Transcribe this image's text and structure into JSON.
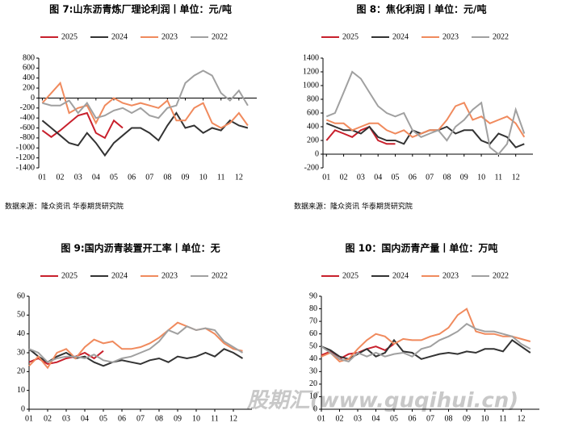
{
  "chart_data": [
    {
      "type": "line",
      "title": "图 7:山东沥青炼厂理论利润丨单位：元/吨",
      "source": "数据来源：隆众资讯 华泰期货研究院",
      "x": [
        1,
        1.5,
        2,
        2.5,
        3,
        3.5,
        4,
        4.5,
        5,
        5.5,
        6,
        6.5,
        7,
        7.5,
        8,
        8.5,
        9,
        9.5,
        10,
        10.5,
        11,
        11.5,
        12,
        12.5
      ],
      "xlim": [
        0.8,
        13
      ],
      "xticks": [
        {
          "value": 1,
          "label": "01"
        },
        {
          "value": 2,
          "label": "02"
        },
        {
          "value": 3,
          "label": "03"
        },
        {
          "value": 4,
          "label": "04"
        },
        {
          "value": 5,
          "label": "05"
        },
        {
          "value": 6,
          "label": "06"
        },
        {
          "value": 7,
          "label": "07"
        },
        {
          "value": 8,
          "label": "08"
        },
        {
          "value": 9,
          "label": "09"
        },
        {
          "value": 10,
          "label": "10"
        },
        {
          "value": 11,
          "label": "11"
        },
        {
          "value": 12,
          "label": "12"
        }
      ],
      "ylim": [
        -1400,
        800
      ],
      "yticks": [
        -1400,
        -1200,
        -1000,
        -800,
        -600,
        -400,
        -200,
        0,
        200,
        400,
        600,
        800
      ],
      "series": [
        {
          "name": "2025",
          "color": "#c8202c",
          "values": [
            -650,
            -780,
            -650,
            -500,
            -350,
            -300,
            -700,
            -800,
            -450,
            -600,
            null,
            null,
            null,
            null,
            null,
            null,
            null,
            null,
            null,
            null,
            null,
            null,
            null,
            null
          ]
        },
        {
          "name": "2024",
          "color": "#333333",
          "values": [
            -450,
            -600,
            -750,
            -900,
            -950,
            -700,
            -900,
            -1150,
            -900,
            -750,
            -600,
            -600,
            -700,
            -850,
            -550,
            -300,
            -600,
            -550,
            -700,
            -600,
            -650,
            -450,
            -550,
            -600
          ]
        },
        {
          "name": "2023",
          "color": "#f08a5d",
          "values": [
            -100,
            100,
            300,
            -300,
            -200,
            -150,
            -500,
            -150,
            0,
            -100,
            -150,
            -100,
            -150,
            -200,
            -50,
            -450,
            -450,
            -200,
            -100,
            -500,
            -600,
            -500,
            -300,
            -550
          ]
        },
        {
          "name": "2022",
          "color": "#a0a0a0",
          "values": [
            -100,
            -150,
            -150,
            -50,
            -300,
            -100,
            -400,
            -350,
            -250,
            -200,
            -300,
            -200,
            -350,
            -400,
            -200,
            -150,
            300,
            450,
            550,
            450,
            100,
            -50,
            150,
            -150
          ]
        }
      ]
    },
    {
      "type": "line",
      "title": "图 8：焦化利润丨单位：元/吨",
      "source": "数据来源：隆众资讯 华泰期货研究院",
      "x": [
        1,
        1.5,
        2,
        2.5,
        3,
        3.5,
        4,
        4.5,
        5,
        5.5,
        6,
        6.5,
        7,
        7.5,
        8,
        8.5,
        9,
        9.5,
        10,
        10.5,
        11,
        11.5,
        12,
        12.5
      ],
      "xlim": [
        0.8,
        13
      ],
      "xticks": [
        {
          "value": 1,
          "label": "01"
        },
        {
          "value": 2,
          "label": "02"
        },
        {
          "value": 3,
          "label": "03"
        },
        {
          "value": 4,
          "label": "04"
        },
        {
          "value": 5,
          "label": "05"
        },
        {
          "value": 6,
          "label": "06"
        },
        {
          "value": 7,
          "label": "07"
        },
        {
          "value": 8,
          "label": "08"
        },
        {
          "value": 9,
          "label": "09"
        },
        {
          "value": 10,
          "label": "10"
        },
        {
          "value": 11,
          "label": "11"
        },
        {
          "value": 12,
          "label": "12"
        }
      ],
      "ylim": [
        -200,
        1400
      ],
      "yticks": [
        -200,
        0,
        200,
        400,
        600,
        800,
        1000,
        1200,
        1400
      ],
      "series": [
        {
          "name": "2025",
          "color": "#c8202c",
          "values": [
            200,
            350,
            300,
            250,
            350,
            400,
            200,
            150,
            150,
            null,
            null,
            null,
            null,
            null,
            null,
            null,
            null,
            null,
            null,
            null,
            null,
            null,
            null,
            null
          ]
        },
        {
          "name": "2024",
          "color": "#333333",
          "values": [
            450,
            400,
            350,
            350,
            300,
            400,
            250,
            200,
            200,
            150,
            350,
            300,
            350,
            350,
            400,
            300,
            350,
            350,
            200,
            150,
            300,
            250,
            100,
            150
          ]
        },
        {
          "name": "2023",
          "color": "#f08a5d",
          "values": [
            500,
            450,
            450,
            350,
            400,
            450,
            450,
            350,
            300,
            350,
            250,
            300,
            350,
            350,
            500,
            700,
            750,
            500,
            550,
            450,
            500,
            550,
            450,
            250
          ]
        },
        {
          "name": "2022",
          "color": "#a0a0a0",
          "values": [
            550,
            600,
            900,
            1200,
            1100,
            900,
            700,
            600,
            550,
            600,
            350,
            250,
            300,
            350,
            200,
            400,
            500,
            650,
            750,
            100,
            0,
            150,
            650,
            300
          ]
        }
      ]
    },
    {
      "type": "line",
      "title": "图 9:国内沥青装置开工率丨单位：无",
      "x": [
        1,
        1.5,
        2,
        2.5,
        3,
        3.5,
        4,
        4.5,
        5,
        5.5,
        6,
        6.5,
        7,
        7.5,
        8,
        8.5,
        9,
        9.5,
        10,
        10.5,
        11,
        11.5,
        12,
        12.5
      ],
      "xlim": [
        1,
        13
      ],
      "xticks": [
        {
          "value": 1,
          "label": "01"
        },
        {
          "value": 2,
          "label": "02"
        },
        {
          "value": 3,
          "label": "03"
        },
        {
          "value": 4,
          "label": "04"
        },
        {
          "value": 5,
          "label": "05"
        },
        {
          "value": 6,
          "label": "06"
        },
        {
          "value": 7,
          "label": "07"
        },
        {
          "value": 8,
          "label": "08"
        },
        {
          "value": 9,
          "label": "09"
        },
        {
          "value": 10,
          "label": "10"
        },
        {
          "value": 11,
          "label": "11"
        },
        {
          "value": 12,
          "label": "12"
        }
      ],
      "ylim": [
        0,
        60
      ],
      "yticks": [
        0,
        10,
        20,
        30,
        40,
        50,
        60
      ],
      "series": [
        {
          "name": "2025",
          "color": "#c8202c",
          "values": [
            25,
            27,
            24,
            25,
            27,
            28,
            30,
            27,
            31,
            null,
            null,
            null,
            null,
            null,
            null,
            null,
            null,
            null,
            null,
            null,
            null,
            null,
            null,
            null
          ]
        },
        {
          "name": "2024",
          "color": "#333333",
          "values": [
            32,
            28,
            25,
            28,
            30,
            27,
            28,
            25,
            23,
            25,
            26,
            25,
            24,
            26,
            27,
            25,
            28,
            27,
            28,
            30,
            28,
            32,
            30,
            27
          ]
        },
        {
          "name": "2023",
          "color": "#f08a5d",
          "values": [
            23,
            28,
            22,
            30,
            32,
            27,
            33,
            37,
            35,
            36,
            32,
            32,
            33,
            35,
            38,
            42,
            46,
            44,
            42,
            43,
            40,
            35,
            32,
            31
          ]
        },
        {
          "name": "2022",
          "color": "#a0a0a0",
          "values": [
            32,
            30,
            25,
            27,
            28,
            28,
            27,
            29,
            26,
            25,
            27,
            28,
            30,
            32,
            36,
            42,
            40,
            44,
            42,
            43,
            42,
            36,
            33,
            30
          ]
        }
      ]
    },
    {
      "type": "line",
      "title": "图 10：国内沥青产量丨单位：万吨",
      "x": [
        1,
        1.5,
        2,
        2.5,
        3,
        3.5,
        4,
        4.5,
        5,
        5.5,
        6,
        6.5,
        7,
        7.5,
        8,
        8.5,
        9,
        9.5,
        10,
        10.5,
        11,
        11.5,
        12,
        12.5
      ],
      "xlim": [
        1,
        13
      ],
      "xticks": [
        {
          "value": 1,
          "label": "01"
        },
        {
          "value": 2,
          "label": "02"
        },
        {
          "value": 3,
          "label": "03"
        },
        {
          "value": 4,
          "label": "04"
        },
        {
          "value": 5,
          "label": "05"
        },
        {
          "value": 6,
          "label": "06"
        },
        {
          "value": 7,
          "label": "07"
        },
        {
          "value": 8,
          "label": "08"
        },
        {
          "value": 9,
          "label": "09"
        },
        {
          "value": 10,
          "label": "10"
        },
        {
          "value": 11,
          "label": "11"
        },
        {
          "value": 12,
          "label": "12"
        }
      ],
      "ylim": [
        0,
        90
      ],
      "yticks": [
        0,
        10,
        20,
        30,
        40,
        50,
        60,
        70,
        80,
        90
      ],
      "series": [
        {
          "name": "2025",
          "color": "#c8202c",
          "values": [
            43,
            46,
            40,
            44,
            45,
            48,
            50,
            47,
            52,
            null,
            null,
            null,
            null,
            null,
            null,
            null,
            null,
            null,
            null,
            null,
            null,
            null,
            null,
            null
          ]
        },
        {
          "name": "2024",
          "color": "#333333",
          "values": [
            50,
            47,
            42,
            40,
            44,
            48,
            42,
            45,
            55,
            46,
            45,
            40,
            42,
            44,
            45,
            44,
            46,
            45,
            48,
            48,
            46,
            55,
            50,
            45
          ]
        },
        {
          "name": "2023",
          "color": "#f08a5d",
          "values": [
            42,
            45,
            38,
            40,
            48,
            55,
            60,
            58,
            52,
            56,
            55,
            55,
            58,
            60,
            65,
            75,
            80,
            62,
            60,
            60,
            58,
            58,
            56,
            54
          ]
        },
        {
          "name": "2022",
          "color": "#a0a0a0",
          "values": [
            50,
            45,
            40,
            38,
            45,
            42,
            45,
            42,
            44,
            45,
            42,
            48,
            50,
            55,
            58,
            62,
            68,
            64,
            62,
            62,
            60,
            58,
            52,
            48
          ]
        }
      ]
    }
  ],
  "watermark": "股期汇(www.guqihui.cn)"
}
